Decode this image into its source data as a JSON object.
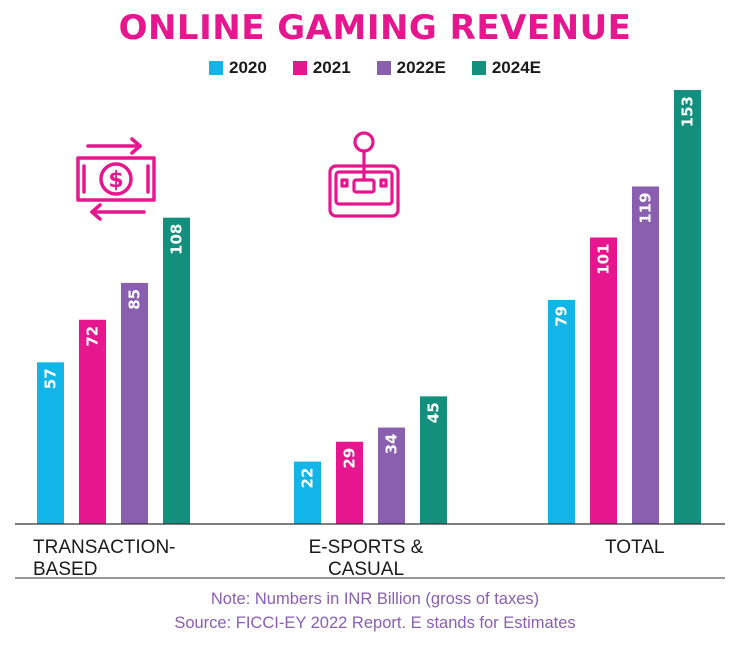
{
  "title": "ONLINE GAMING REVENUE",
  "legend": [
    {
      "label": "2020",
      "color": "#12b5e8"
    },
    {
      "label": "2021",
      "color": "#e6168f"
    },
    {
      "label": "2022E",
      "color": "#8a5fb0"
    },
    {
      "label": "2024E",
      "color": "#12907d"
    }
  ],
  "chart_data": {
    "type": "bar",
    "title": "ONLINE GAMING REVENUE",
    "categories": [
      "TRANSACTION-\nBASED",
      "E-SPORTS &\nCASUAL",
      "TOTAL"
    ],
    "series": [
      {
        "name": "2020",
        "color": "#12b5e8",
        "values": [
          57,
          22,
          79
        ]
      },
      {
        "name": "2021",
        "color": "#e6168f",
        "values": [
          72,
          29,
          101
        ]
      },
      {
        "name": "2022E",
        "color": "#8a5fb0",
        "values": [
          85,
          34,
          119
        ]
      },
      {
        "name": "2024E",
        "color": "#12907d",
        "values": [
          108,
          45,
          153
        ]
      }
    ],
    "ylim": [
      0,
      153
    ],
    "grid": false,
    "legend_position": "top-center",
    "data_labels": true
  },
  "icons": [
    {
      "name": "money-transfer-icon",
      "color": "#e6168f"
    },
    {
      "name": "joystick-icon",
      "color": "#e6168f"
    }
  ],
  "footer": {
    "note": "Note: Numbers in INR Billion (gross of taxes)",
    "source": "Source: FICCI-EY 2022 Report. E stands for Estimates"
  }
}
